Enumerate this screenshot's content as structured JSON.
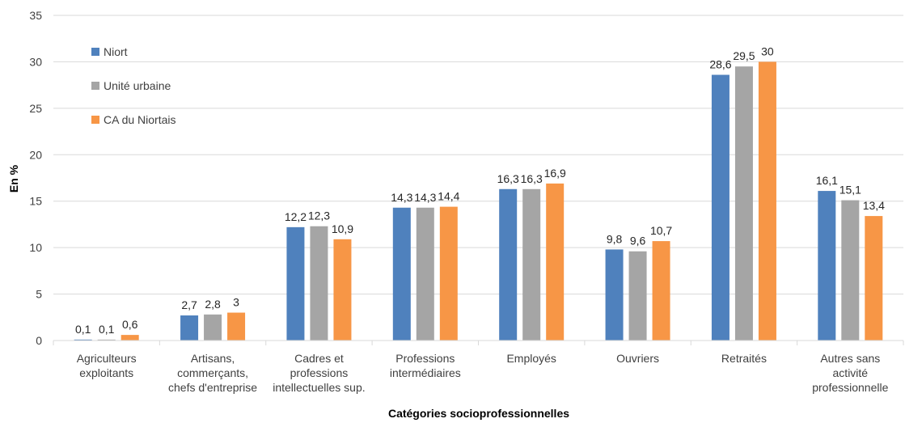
{
  "chart_data": {
    "type": "bar",
    "categories": [
      [
        "Agriculteurs",
        "exploitants"
      ],
      [
        "Artisans,",
        "commerçants,",
        "chefs d'entreprise"
      ],
      [
        "Cadres et",
        "professions",
        "intellectuelles sup."
      ],
      [
        "Professions",
        "intermédiaires"
      ],
      [
        "Employés"
      ],
      [
        "Ouvriers"
      ],
      [
        "Retraités"
      ],
      [
        "Autres sans",
        "activité",
        "professionnelle"
      ]
    ],
    "series": [
      {
        "name": "Niort",
        "color": "#4F81BD",
        "values": [
          0.1,
          2.7,
          12.2,
          14.3,
          16.3,
          9.8,
          28.6,
          16.1
        ],
        "labels": [
          "0,1",
          "2,7",
          "12,2",
          "14,3",
          "16,3",
          "9,8",
          "28,6",
          "16,1"
        ]
      },
      {
        "name": "Unité urbaine",
        "color": "#A5A5A5",
        "values": [
          0.1,
          2.8,
          12.3,
          14.3,
          16.3,
          9.6,
          29.5,
          15.1
        ],
        "labels": [
          "0,1",
          "2,8",
          "12,3",
          "14,3",
          "16,3",
          "9,6",
          "29,5",
          "15,1"
        ]
      },
      {
        "name": "CA du Niortais",
        "color": "#F79646",
        "values": [
          0.6,
          3,
          10.9,
          14.4,
          16.9,
          10.7,
          30,
          13.4
        ],
        "labels": [
          "0,6",
          "3",
          "10,9",
          "14,4",
          "16,9",
          "10,7",
          "30",
          "13,4"
        ]
      }
    ],
    "ylabel": "En %",
    "xlabel": "Catégories socioprofessionnelles",
    "ylim": [
      0,
      35
    ],
    "yticks": [
      0,
      5,
      10,
      15,
      20,
      25,
      30,
      35
    ],
    "grid": true,
    "legend_position": "top-left",
    "gridline_color": "#D9D9D9"
  }
}
